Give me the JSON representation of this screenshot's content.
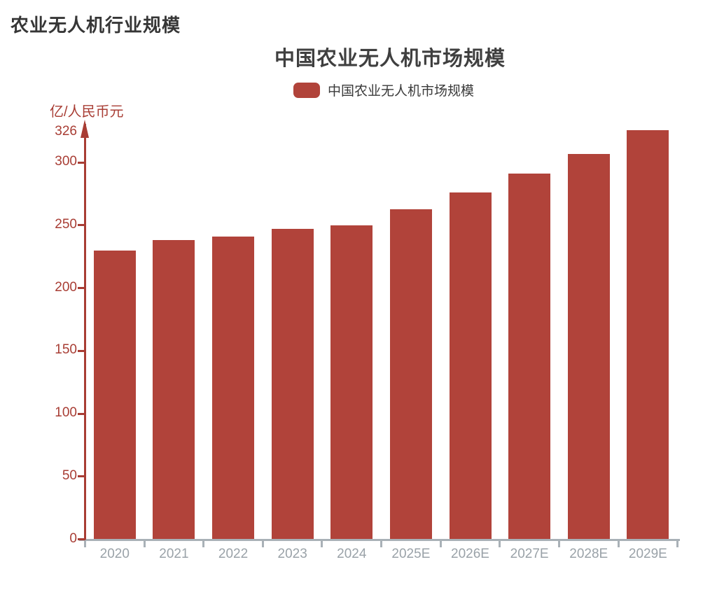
{
  "page": {
    "title": "农业无人机行业规模"
  },
  "chart_data": {
    "type": "bar",
    "title": "中国农业无人机市场规模",
    "legend": [
      {
        "label": "中国农业无人机市场规模"
      }
    ],
    "legend_position": "top",
    "ylabel": "亿/人民币元",
    "xlabel": "",
    "categories": [
      "2020",
      "2021",
      "2022",
      "2023",
      "2024",
      "2025E",
      "2026E",
      "2027E",
      "2028E",
      "2029E"
    ],
    "values": [
      230,
      238,
      241,
      247,
      250,
      263,
      276,
      291,
      307,
      326
    ],
    "y_ticks": [
      0,
      50,
      100,
      150,
      200,
      250,
      300
    ],
    "y_axis_max_label": "326",
    "ylim": [
      0,
      326
    ],
    "grid": false,
    "colors": {
      "bar": "#b1433a",
      "axis_red": "#a83d34",
      "axis_gray": "#a9b1b7",
      "x_tick_label": "#9aa2a8",
      "chart_title_text": "#3f3f3f",
      "page_title_text": "#363636",
      "legend_text": "#3a3a3a"
    }
  }
}
